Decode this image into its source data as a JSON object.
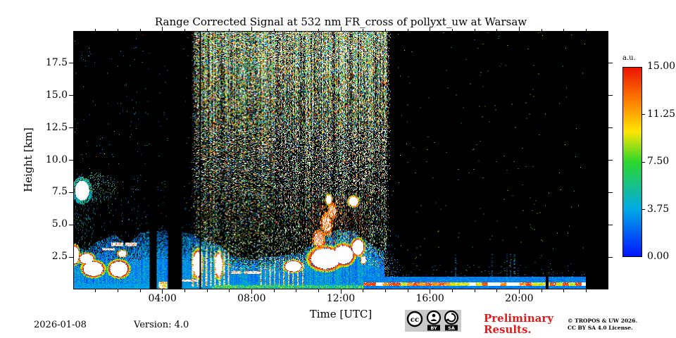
{
  "chart_data": {
    "type": "heatmap",
    "title": "Range Corrected Signal at 532 nm FR_cross of pollyxt_uw at Warsaw",
    "xlabel": "Time [UTC]",
    "ylabel": "Height [km]",
    "x_range_hours": [
      0,
      24
    ],
    "y_range_km": [
      0,
      20
    ],
    "x_ticks_major": [
      {
        "hour": 4,
        "label": "04:00"
      },
      {
        "hour": 8,
        "label": "08:00"
      },
      {
        "hour": 12,
        "label": "12:00"
      },
      {
        "hour": 16,
        "label": "16:00"
      },
      {
        "hour": 20,
        "label": "20:00"
      }
    ],
    "x_minor_step_hours": 1,
    "y_ticks_major": [
      {
        "km": 2.5,
        "label": "2.5"
      },
      {
        "km": 5.0,
        "label": "5.0"
      },
      {
        "km": 7.5,
        "label": "7.5"
      },
      {
        "km": 10.0,
        "label": "10.0"
      },
      {
        "km": 12.5,
        "label": "12.5"
      },
      {
        "km": 15.0,
        "label": "15.0"
      },
      {
        "km": 17.5,
        "label": "17.5"
      }
    ],
    "colorbar": {
      "label": "a.u.",
      "vmin": 0,
      "vmax": 15,
      "ticks": [
        {
          "value": 15.0,
          "label": "15.00"
        },
        {
          "value": 11.25,
          "label": "11.25"
        },
        {
          "value": 7.5,
          "label": "7.50"
        },
        {
          "value": 3.75,
          "label": "3.75"
        },
        {
          "value": 0.0,
          "label": "0.00"
        }
      ],
      "stops_rgb": [
        [
          0.0,
          0,
          20,
          255
        ],
        [
          0.25,
          0,
          170,
          230
        ],
        [
          0.5,
          45,
          215,
          45
        ],
        [
          0.66,
          255,
          230,
          0
        ],
        [
          0.8,
          255,
          140,
          0
        ],
        [
          1.0,
          235,
          20,
          0
        ]
      ],
      "over_color": "#ffffff",
      "background_color": "#000000"
    },
    "features": {
      "data_end_hour": 23.0,
      "time_gaps": [
        [
          3.38,
          3.72
        ],
        [
          4.22,
          4.85
        ],
        [
          21.19,
          21.32
        ]
      ],
      "thin_gap_line_hour": 5.68,
      "aerosol": {
        "end_hour": 13.95,
        "top_km_points": [
          [
            0,
            3.3
          ],
          [
            0.5,
            3.0
          ],
          [
            1,
            3.6
          ],
          [
            1.8,
            4.2
          ],
          [
            2.4,
            3.4
          ],
          [
            3.0,
            4.4
          ],
          [
            4.2,
            4.5
          ],
          [
            4.85,
            4.4
          ],
          [
            5.3,
            4.2
          ],
          [
            6.0,
            3.6
          ],
          [
            6.6,
            3.4
          ],
          [
            7.0,
            2.6
          ],
          [
            8.0,
            2.2
          ],
          [
            8.6,
            2.4
          ],
          [
            9.5,
            2.6
          ],
          [
            10.2,
            2.8
          ],
          [
            10.8,
            3.6
          ],
          [
            11.5,
            4.4
          ],
          [
            12.0,
            4.6
          ],
          [
            12.6,
            4.4
          ],
          [
            13.2,
            3.6
          ],
          [
            13.95,
            2.8
          ]
        ]
      },
      "day_noise_band": {
        "start_hour": 5.55,
        "end_hour": 13.95,
        "edge_hours": 0.3,
        "base_density": 0.1,
        "top_extra_density": 0.8
      },
      "night_speckle_left": {
        "end_hour": 5.55,
        "density_below_9km": 0.016,
        "density_above_9km": 0.004
      },
      "night_speckle_right": {
        "start_hour": 13.95,
        "density": 0.002,
        "low_level_density": 0.035,
        "post_cutoff_density": 0.22
      },
      "clouds": [
        {
          "t": 0.35,
          "h": 7.6,
          "rt": 0.45,
          "rh": 1.1,
          "style": "cyan_cloud"
        },
        {
          "t": 0.05,
          "h": 2.6,
          "rt": 0.22,
          "rh": 0.9,
          "style": "white_cloud"
        },
        {
          "t": 0.55,
          "h": 2.3,
          "rt": 0.42,
          "rh": 0.55,
          "style": "white_cloud"
        },
        {
          "t": 0.85,
          "h": 1.5,
          "rt": 0.6,
          "rh": 0.75,
          "style": "white_cloud"
        },
        {
          "t": 2.0,
          "h": 1.5,
          "rt": 0.55,
          "rh": 0.8,
          "style": "white_cloud"
        },
        {
          "t": 2.15,
          "h": 2.7,
          "rt": 0.25,
          "rh": 0.35,
          "style": "white_cloud"
        },
        {
          "t": 5.55,
          "h": 1.9,
          "rt": 0.28,
          "rh": 1.3,
          "style": "white_cloud"
        },
        {
          "t": 6.5,
          "h": 1.8,
          "rt": 0.22,
          "rh": 1.2,
          "style": "white_cloud"
        },
        {
          "t": 9.85,
          "h": 1.7,
          "rt": 0.5,
          "rh": 0.55,
          "style": "white_cloud"
        },
        {
          "t": 11.3,
          "h": 2.3,
          "rt": 0.9,
          "rh": 1.1,
          "style": "white_cloud"
        },
        {
          "t": 12.1,
          "h": 2.6,
          "rt": 0.6,
          "rh": 1.0,
          "style": "white_cloud"
        },
        {
          "t": 11.0,
          "h": 3.8,
          "rt": 0.3,
          "rh": 0.8,
          "style": "warm_plume"
        },
        {
          "t": 11.35,
          "h": 5.0,
          "rt": 0.28,
          "rh": 0.9,
          "style": "warm_plume"
        },
        {
          "t": 11.6,
          "h": 6.0,
          "rt": 0.22,
          "rh": 0.7,
          "style": "warm_plume"
        },
        {
          "t": 11.45,
          "h": 6.9,
          "rt": 0.18,
          "rh": 0.45,
          "style": "white_cloud"
        },
        {
          "t": 12.55,
          "h": 6.75,
          "rt": 0.28,
          "rh": 0.5,
          "style": "white_cloud"
        },
        {
          "t": 12.75,
          "h": 3.2,
          "rt": 0.35,
          "rh": 0.8,
          "style": "white_cloud"
        },
        {
          "t": 13.0,
          "h": 2.2,
          "rt": 0.15,
          "rh": 0.4,
          "style": "white_cloud"
        }
      ],
      "speckle_halos": [
        {
          "t": 0.9,
          "h": 7.8,
          "rt": 1.0,
          "rh": 1.3,
          "density": 0.18,
          "v0": 3,
          "v1": 6.5
        },
        {
          "t": 0.35,
          "h": 5.6,
          "rt": 0.55,
          "rh": 3.0,
          "density": 0.1,
          "v0": 3,
          "v1": 6
        },
        {
          "t": 11.7,
          "h": 4.4,
          "rt": 1.5,
          "rh": 2.8,
          "density": 0.12,
          "v0": 11.5,
          "v1": 15
        }
      ],
      "bright_layers": [
        {
          "h0": 3.32,
          "h1": 3.55,
          "segments": [
            [
              1.65,
              2.2
            ],
            [
              2.3,
              2.78
            ]
          ],
          "style": "hot"
        },
        {
          "h0": 2.98,
          "h1": 3.15,
          "segments": [
            [
              1.25,
              1.8
            ]
          ],
          "style": "hot"
        },
        {
          "h0": 1.12,
          "h1": 1.32,
          "segments": [
            [
              7.05,
              7.5
            ],
            [
              7.62,
              8.35
            ]
          ],
          "style": "hot"
        },
        {
          "h0": 0.52,
          "h1": 0.7,
          "segments": [
            [
              4.75,
              5.55
            ]
          ],
          "style": "hot"
        },
        {
          "h0": 0.0,
          "h1": 0.22,
          "segments": [
            [
              6.2,
              13.0
            ]
          ],
          "style": "green"
        },
        {
          "h0": 0.0,
          "h1": 0.5,
          "segments": [
            [
              3.8,
              4.18
            ]
          ],
          "style": "hot_mix"
        }
      ],
      "streak_sets": [
        {
          "t0": 5.3,
          "t1": 7.05,
          "period": 0.2,
          "width": 0.07,
          "hmax": 3.3,
          "white_p": 0.5
        },
        {
          "t0": 8.35,
          "t1": 10.45,
          "period": 0.21,
          "width": 0.06,
          "hmax": 2.35,
          "white_p": 0.45
        }
      ],
      "surface_stripe": {
        "t0": 13.0,
        "t1": 23.0,
        "band_top_km": 0.9,
        "core_km": [
          0.18,
          0.45
        ],
        "segment_hours": 0.28
      },
      "late_dotted_columns": {
        "hours": [
          17.15,
          18.8,
          19.45,
          19.6,
          19.78
        ],
        "half_width_hours": 0.02,
        "hmax_km": 2.7,
        "density": 0.38
      }
    }
  },
  "footer": {
    "date": "2026-01-08",
    "version": "Version: 4.0",
    "preliminary_line1": "Preliminary",
    "preliminary_line2": "Results.",
    "preliminary_color": "#e31b1b",
    "copyright_line1": "© TROPOS & UW 2026.",
    "copyright_line2": "CC BY SA 4.0 License.",
    "badge": {
      "bg": "#c9c9c9",
      "cc_label": "cc",
      "by_label": "BY",
      "sa_label": "SA"
    }
  }
}
